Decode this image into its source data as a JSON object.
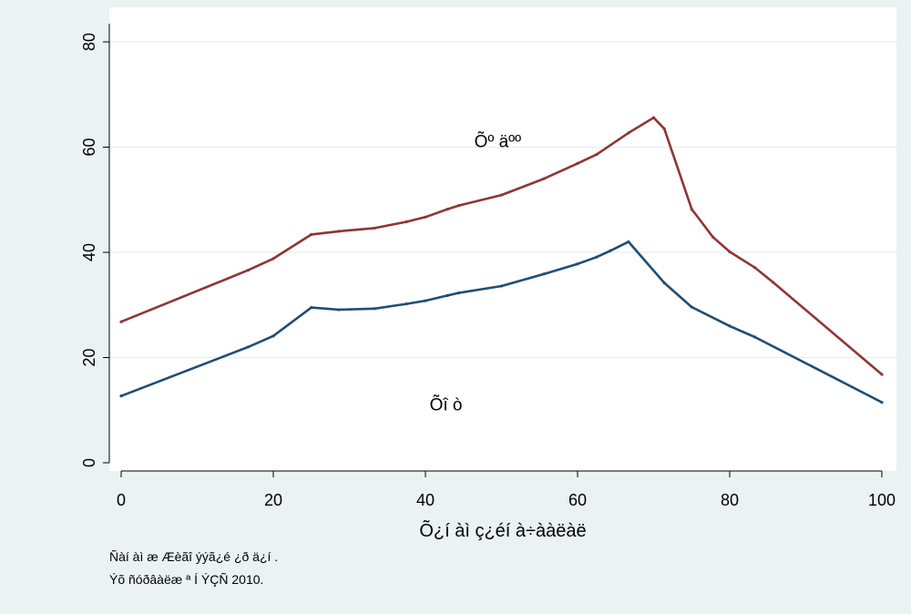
{
  "chart_data": {
    "type": "line",
    "xlabel": "Õ¿í àì ç¿éí à÷ààëàë",
    "ylabel": "",
    "xlim": [
      0,
      100
    ],
    "ylim": [
      0,
      80
    ],
    "xticks": [
      0,
      20,
      40,
      60,
      80,
      100
    ],
    "yticks": [
      0,
      20,
      40,
      60,
      80
    ],
    "grid": true,
    "legend": "none",
    "series": [
      {
        "color": "#903535",
        "x": [
          0,
          16.7,
          20,
          25,
          28.6,
          33.3,
          37.5,
          40,
          42.9,
          44.4,
          50,
          55.6,
          60,
          62.5,
          66.7,
          70,
          71.4,
          75,
          77.8,
          80,
          83.3,
          85.7,
          100
        ],
        "y": [
          26.8,
          36.6,
          38.8,
          43.4,
          44.0,
          44.6,
          45.8,
          46.7,
          48.2,
          48.9,
          50.9,
          54.0,
          56.9,
          58.6,
          62.7,
          65.6,
          63.5,
          48.2,
          42.9,
          40.1,
          37.1,
          34.3,
          16.8
        ]
      },
      {
        "color": "#1f4e74",
        "x": [
          0,
          16.7,
          20,
          25,
          28.6,
          33.3,
          37.5,
          40,
          42.9,
          44.4,
          50,
          55.6,
          60,
          62.5,
          64.3,
          66.7,
          71.4,
          75,
          80,
          83.3,
          100
        ],
        "y": [
          12.7,
          22.0,
          24.1,
          29.5,
          29.1,
          29.3,
          30.2,
          30.8,
          31.8,
          32.3,
          33.6,
          35.9,
          37.8,
          39.1,
          40.3,
          42.0,
          34.2,
          29.6,
          26.0,
          23.9,
          11.5
        ]
      }
    ],
    "annotations": [
      {
        "text": "Õº äºº",
        "x": 49.5,
        "y": 60
      },
      {
        "text": "Õî ò",
        "x": 42.7,
        "y": 10
      }
    ]
  },
  "notes": [
    "Ñàí àì æ Æèãî ýýã¿é ¿ð ä¿í .",
    "Ýõ ñóðâàëæ ª Í ÝÇÑ 2010."
  ]
}
